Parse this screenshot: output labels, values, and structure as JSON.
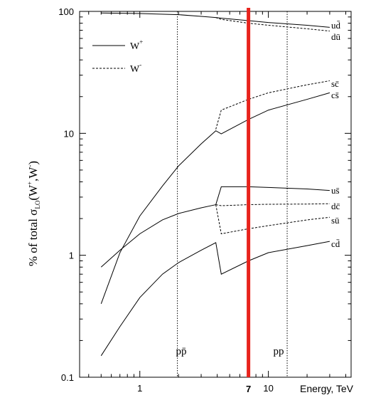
{
  "chart_data": {
    "type": "line",
    "xscale": "log",
    "yscale": "log",
    "xlim": [
      0.34,
      44
    ],
    "ylim": [
      0.1,
      100
    ],
    "xlabel": "Energy, TeV",
    "ylabel_parts": {
      "pre": "%  of  total  σ",
      "sub": "LO",
      "open": "(W",
      "sup": "+",
      "mid": ",W",
      "sup2": "-",
      "close": ")"
    },
    "x_ticks": [
      1,
      10
    ],
    "y_ticks": [
      0.1,
      1,
      10,
      100
    ],
    "highlight": {
      "x": 7,
      "label": "7",
      "color": "#e8231c"
    },
    "regions": [
      {
        "label": "pp̄",
        "x": 2.1,
        "divider": 1.96
      },
      {
        "label": "pp",
        "x": 12,
        "divider": 14
      }
    ],
    "legend": {
      "position": "top-left",
      "items": [
        {
          "label": "W",
          "sup": "+",
          "style": "solid"
        },
        {
          "label": "W",
          "sup": "-",
          "style": "dashed"
        }
      ]
    },
    "series": [
      {
        "name": "ud̄",
        "style": "solid",
        "x": [
          0.5,
          1,
          2,
          3,
          3.9,
          4.3,
          7,
          10,
          20,
          30
        ],
        "y": [
          97,
          96,
          94,
          91,
          89,
          88,
          84,
          81,
          77,
          74
        ]
      },
      {
        "name": "dū",
        "style": "dashed",
        "x": [
          3.9,
          4.3,
          7,
          10,
          20,
          30
        ],
        "y": [
          89,
          86,
          80,
          77,
          72,
          69
        ]
      },
      {
        "name": "sc̄",
        "style": "dashed",
        "x": [
          3.9,
          4.3,
          7,
          10,
          20,
          30
        ],
        "y": [
          10.8,
          15.5,
          19,
          21.5,
          25,
          27
        ]
      },
      {
        "name": "cs̄",
        "style": "solid",
        "x": [
          0.5,
          0.7,
          1,
          1.5,
          2,
          3,
          3.9,
          4.3,
          7,
          10,
          20,
          30
        ],
        "y": [
          0.4,
          1.05,
          2.1,
          3.7,
          5.4,
          8.2,
          10.5,
          9.9,
          13,
          15.5,
          19,
          21.5
        ]
      },
      {
        "name": "us̄",
        "style": "solid",
        "x": [
          3.9,
          4.3,
          7,
          10,
          20,
          30
        ],
        "y": [
          2.6,
          3.65,
          3.65,
          3.6,
          3.5,
          3.4
        ]
      },
      {
        "name": "dc̄",
        "style": "dashed",
        "x": [
          3.9,
          4.3,
          7,
          10,
          20,
          30
        ],
        "y": [
          2.6,
          2.55,
          2.6,
          2.62,
          2.63,
          2.65
        ]
      },
      {
        "name": "sū",
        "style": "dashed",
        "x": [
          3.9,
          4.3,
          7,
          10,
          20,
          30
        ],
        "y": [
          2.6,
          1.5,
          1.65,
          1.75,
          1.95,
          2.05
        ]
      },
      {
        "name": "",
        "style": "solid",
        "x": [
          0.5,
          0.7,
          1,
          1.5,
          2,
          3,
          3.9
        ],
        "y": [
          0.8,
          1.1,
          1.5,
          1.95,
          2.2,
          2.45,
          2.6
        ]
      },
      {
        "name": "cd̄",
        "style": "solid",
        "x": [
          0.5,
          0.7,
          1,
          1.5,
          2,
          3,
          3.9,
          4.3,
          7,
          10,
          20,
          30
        ],
        "y": [
          0.15,
          0.26,
          0.45,
          0.7,
          0.87,
          1.1,
          1.27,
          0.7,
          0.9,
          1.05,
          1.2,
          1.3
        ]
      }
    ]
  }
}
